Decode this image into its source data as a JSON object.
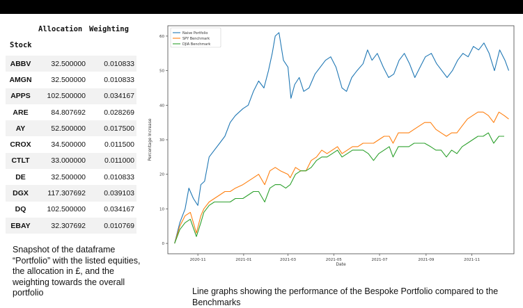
{
  "table": {
    "index_name": "Stock",
    "columns": [
      "Allocation",
      "Weighting"
    ],
    "rows": [
      {
        "ticker": "ABBV",
        "allocation": "32.500000",
        "weighting": "0.010833"
      },
      {
        "ticker": "AMGN",
        "allocation": "32.500000",
        "weighting": "0.010833"
      },
      {
        "ticker": "APPS",
        "allocation": "102.500000",
        "weighting": "0.034167"
      },
      {
        "ticker": "ARE",
        "allocation": "84.807692",
        "weighting": "0.028269"
      },
      {
        "ticker": "AY",
        "allocation": "52.500000",
        "weighting": "0.017500"
      },
      {
        "ticker": "CROX",
        "allocation": "34.500000",
        "weighting": "0.011500"
      },
      {
        "ticker": "CTLT",
        "allocation": "33.000000",
        "weighting": "0.011000"
      },
      {
        "ticker": "DE",
        "allocation": "32.500000",
        "weighting": "0.010833"
      },
      {
        "ticker": "DGX",
        "allocation": "117.307692",
        "weighting": "0.039103"
      },
      {
        "ticker": "DQ",
        "allocation": "102.500000",
        "weighting": "0.034167"
      },
      {
        "ticker": "EBAY",
        "allocation": "32.307692",
        "weighting": "0.010769"
      }
    ]
  },
  "captions": {
    "left": "Snapshot of the dataframe “Portfolio” with the listed equities, the allocation in £, and the weighting towards the overall portfolio",
    "right": "Line graphs showing the performance of the Bespoke Portfolio compared to the Benchmarks"
  },
  "colors": {
    "naive": "#1f77b4",
    "spy": "#ff7f0e",
    "djia": "#2ca02c",
    "top_bar": "#000000",
    "row_alt": "#f2f2f2"
  },
  "chart_data": {
    "type": "line",
    "title": "",
    "xlabel": "Date",
    "ylabel": "Percentage Increase",
    "x_tick_labels": [
      "2020-11",
      "2021-01",
      "2021-03",
      "2021-05",
      "2021-07",
      "2021-09",
      "2021-11"
    ],
    "x_ticks": [
      "2020-11-01",
      "2021-01-01",
      "2021-03-01",
      "2021-05-01",
      "2021-07-01",
      "2021-09-01",
      "2021-11-01"
    ],
    "y_ticks": [
      0,
      10,
      20,
      30,
      40,
      50,
      60
    ],
    "xlim": [
      "2020-09-22",
      "2021-12-27"
    ],
    "ylim": [
      -3,
      63
    ],
    "grid": false,
    "legend": "top-left",
    "series": [
      {
        "name": "Naive Portfolio",
        "points": [
          [
            "2020-10-01",
            0
          ],
          [
            "2020-10-08",
            6
          ],
          [
            "2020-10-15",
            10
          ],
          [
            "2020-10-20",
            16
          ],
          [
            "2020-10-26",
            13
          ],
          [
            "2020-11-01",
            11
          ],
          [
            "2020-11-05",
            17
          ],
          [
            "2020-11-10",
            18
          ],
          [
            "2020-11-16",
            25
          ],
          [
            "2020-11-23",
            27
          ],
          [
            "2020-11-30",
            29
          ],
          [
            "2020-12-07",
            31
          ],
          [
            "2020-12-14",
            35
          ],
          [
            "2020-12-21",
            37
          ],
          [
            "2020-12-31",
            39
          ],
          [
            "2021-01-07",
            40
          ],
          [
            "2021-01-14",
            44
          ],
          [
            "2021-01-21",
            47
          ],
          [
            "2021-01-28",
            45
          ],
          [
            "2021-02-03",
            50
          ],
          [
            "2021-02-08",
            55
          ],
          [
            "2021-02-12",
            60
          ],
          [
            "2021-02-17",
            61
          ],
          [
            "2021-02-23",
            53
          ],
          [
            "2021-03-01",
            51
          ],
          [
            "2021-03-05",
            42
          ],
          [
            "2021-03-10",
            46
          ],
          [
            "2021-03-16",
            48
          ],
          [
            "2021-03-22",
            44
          ],
          [
            "2021-03-29",
            45
          ],
          [
            "2021-04-06",
            49
          ],
          [
            "2021-04-13",
            51
          ],
          [
            "2021-04-20",
            53
          ],
          [
            "2021-04-27",
            54
          ],
          [
            "2021-05-04",
            51
          ],
          [
            "2021-05-12",
            45
          ],
          [
            "2021-05-18",
            44
          ],
          [
            "2021-05-25",
            48
          ],
          [
            "2021-06-01",
            50
          ],
          [
            "2021-06-09",
            52
          ],
          [
            "2021-06-15",
            56
          ],
          [
            "2021-06-21",
            53
          ],
          [
            "2021-06-28",
            55
          ],
          [
            "2021-07-06",
            51
          ],
          [
            "2021-07-13",
            48
          ],
          [
            "2021-07-20",
            49
          ],
          [
            "2021-07-27",
            53
          ],
          [
            "2021-08-03",
            55
          ],
          [
            "2021-08-10",
            52
          ],
          [
            "2021-08-17",
            48
          ],
          [
            "2021-08-24",
            51
          ],
          [
            "2021-08-31",
            54
          ],
          [
            "2021-09-08",
            55
          ],
          [
            "2021-09-15",
            52
          ],
          [
            "2021-09-22",
            50
          ],
          [
            "2021-09-29",
            48
          ],
          [
            "2021-10-06",
            50
          ],
          [
            "2021-10-13",
            53
          ],
          [
            "2021-10-20",
            55
          ],
          [
            "2021-10-27",
            54
          ],
          [
            "2021-11-03",
            57
          ],
          [
            "2021-11-10",
            56
          ],
          [
            "2021-11-17",
            58
          ],
          [
            "2021-11-24",
            55
          ],
          [
            "2021-12-01",
            50
          ],
          [
            "2021-12-08",
            56
          ],
          [
            "2021-12-15",
            53
          ],
          [
            "2021-12-20",
            50
          ]
        ]
      },
      {
        "name": "SPY Benchmark",
        "points": [
          [
            "2020-10-01",
            0
          ],
          [
            "2020-10-08",
            5
          ],
          [
            "2020-10-15",
            8
          ],
          [
            "2020-10-22",
            9
          ],
          [
            "2020-10-30",
            3
          ],
          [
            "2020-11-05",
            8
          ],
          [
            "2020-11-09",
            10
          ],
          [
            "2020-11-16",
            12
          ],
          [
            "2020-11-23",
            13
          ],
          [
            "2020-11-30",
            14
          ],
          [
            "2020-12-07",
            15
          ],
          [
            "2020-12-14",
            15
          ],
          [
            "2020-12-21",
            16
          ],
          [
            "2020-12-31",
            17
          ],
          [
            "2021-01-07",
            18
          ],
          [
            "2021-01-14",
            19
          ],
          [
            "2021-01-21",
            20
          ],
          [
            "2021-01-29",
            17
          ],
          [
            "2021-02-05",
            21
          ],
          [
            "2021-02-12",
            22
          ],
          [
            "2021-02-19",
            21
          ],
          [
            "2021-03-01",
            20
          ],
          [
            "2021-03-04",
            19
          ],
          [
            "2021-03-11",
            22
          ],
          [
            "2021-03-18",
            21
          ],
          [
            "2021-03-25",
            21
          ],
          [
            "2021-04-01",
            24
          ],
          [
            "2021-04-08",
            25
          ],
          [
            "2021-04-15",
            27
          ],
          [
            "2021-04-22",
            26
          ],
          [
            "2021-04-29",
            27
          ],
          [
            "2021-05-06",
            28
          ],
          [
            "2021-05-12",
            26
          ],
          [
            "2021-05-19",
            27
          ],
          [
            "2021-05-26",
            28
          ],
          [
            "2021-06-02",
            28
          ],
          [
            "2021-06-09",
            29
          ],
          [
            "2021-06-16",
            29
          ],
          [
            "2021-06-23",
            29
          ],
          [
            "2021-06-30",
            30
          ],
          [
            "2021-07-07",
            31
          ],
          [
            "2021-07-14",
            31
          ],
          [
            "2021-07-19",
            29
          ],
          [
            "2021-07-26",
            32
          ],
          [
            "2021-08-02",
            32
          ],
          [
            "2021-08-09",
            32
          ],
          [
            "2021-08-16",
            33
          ],
          [
            "2021-08-23",
            34
          ],
          [
            "2021-08-30",
            35
          ],
          [
            "2021-09-07",
            35
          ],
          [
            "2021-09-14",
            33
          ],
          [
            "2021-09-21",
            32
          ],
          [
            "2021-09-28",
            31
          ],
          [
            "2021-10-05",
            32
          ],
          [
            "2021-10-12",
            32
          ],
          [
            "2021-10-19",
            34
          ],
          [
            "2021-10-26",
            36
          ],
          [
            "2021-11-02",
            37
          ],
          [
            "2021-11-09",
            38
          ],
          [
            "2021-11-16",
            38
          ],
          [
            "2021-11-23",
            37
          ],
          [
            "2021-11-30",
            35
          ],
          [
            "2021-12-07",
            38
          ],
          [
            "2021-12-14",
            37
          ],
          [
            "2021-12-20",
            36
          ]
        ]
      },
      {
        "name": "DJIA Benchmark",
        "points": [
          [
            "2020-10-01",
            0
          ],
          [
            "2020-10-08",
            4
          ],
          [
            "2020-10-15",
            6
          ],
          [
            "2020-10-22",
            7
          ],
          [
            "2020-10-30",
            2
          ],
          [
            "2020-11-05",
            6
          ],
          [
            "2020-11-09",
            9
          ],
          [
            "2020-11-16",
            11
          ],
          [
            "2020-11-23",
            12
          ],
          [
            "2020-11-30",
            12
          ],
          [
            "2020-12-07",
            12
          ],
          [
            "2020-12-14",
            12
          ],
          [
            "2020-12-21",
            13
          ],
          [
            "2020-12-31",
            13
          ],
          [
            "2021-01-07",
            14
          ],
          [
            "2021-01-14",
            15
          ],
          [
            "2021-01-21",
            15
          ],
          [
            "2021-01-29",
            12
          ],
          [
            "2021-02-05",
            16
          ],
          [
            "2021-02-12",
            17
          ],
          [
            "2021-02-19",
            17
          ],
          [
            "2021-02-26",
            16
          ],
          [
            "2021-03-04",
            17
          ],
          [
            "2021-03-11",
            20
          ],
          [
            "2021-03-18",
            21
          ],
          [
            "2021-03-25",
            21
          ],
          [
            "2021-04-01",
            22
          ],
          [
            "2021-04-08",
            24
          ],
          [
            "2021-04-15",
            25
          ],
          [
            "2021-04-22",
            25
          ],
          [
            "2021-04-29",
            26
          ],
          [
            "2021-05-06",
            27
          ],
          [
            "2021-05-12",
            25
          ],
          [
            "2021-05-19",
            26
          ],
          [
            "2021-05-26",
            27
          ],
          [
            "2021-06-02",
            27
          ],
          [
            "2021-06-09",
            27
          ],
          [
            "2021-06-16",
            26
          ],
          [
            "2021-06-23",
            24
          ],
          [
            "2021-06-30",
            26
          ],
          [
            "2021-07-07",
            27
          ],
          [
            "2021-07-14",
            28
          ],
          [
            "2021-07-19",
            25
          ],
          [
            "2021-07-26",
            28
          ],
          [
            "2021-08-02",
            28
          ],
          [
            "2021-08-09",
            28
          ],
          [
            "2021-08-16",
            29
          ],
          [
            "2021-08-23",
            29
          ],
          [
            "2021-08-30",
            29
          ],
          [
            "2021-09-07",
            28
          ],
          [
            "2021-09-14",
            27
          ],
          [
            "2021-09-21",
            27
          ],
          [
            "2021-09-28",
            25
          ],
          [
            "2021-10-05",
            27
          ],
          [
            "2021-10-12",
            26
          ],
          [
            "2021-10-19",
            28
          ],
          [
            "2021-10-26",
            29
          ],
          [
            "2021-11-02",
            30
          ],
          [
            "2021-11-09",
            31
          ],
          [
            "2021-11-16",
            31
          ],
          [
            "2021-11-23",
            32
          ],
          [
            "2021-11-30",
            29
          ],
          [
            "2021-12-07",
            31
          ],
          [
            "2021-12-14",
            31
          ]
        ]
      }
    ]
  }
}
